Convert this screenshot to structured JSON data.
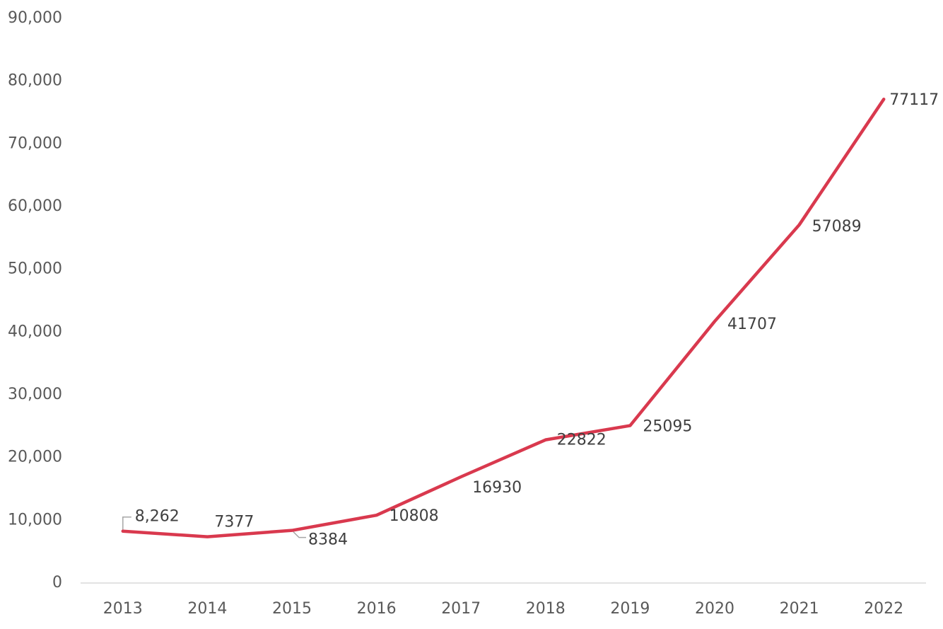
{
  "chart_data": {
    "type": "line",
    "title": "",
    "xlabel": "",
    "ylabel": "",
    "categories": [
      "2013",
      "2014",
      "2015",
      "2016",
      "2017",
      "2018",
      "2019",
      "2020",
      "2021",
      "2022"
    ],
    "series": [
      {
        "values": [
          8262,
          7377,
          8384,
          10808,
          16930,
          22822,
          25095,
          41707,
          57089,
          77117
        ],
        "color": "#D9394E"
      }
    ],
    "data_labels": [
      "8,262",
      "7377",
      "8384",
      "10808",
      "16930",
      "22822",
      "25095",
      "41707",
      "57089",
      "77117"
    ],
    "y_tick_labels": [
      "0",
      "10,000",
      "20,000",
      "30,000",
      "40,000",
      "50,000",
      "60,000",
      "70,000",
      "80,000",
      "90,000"
    ],
    "ylim": [
      0,
      90000
    ],
    "grid": false,
    "legend": "none"
  }
}
